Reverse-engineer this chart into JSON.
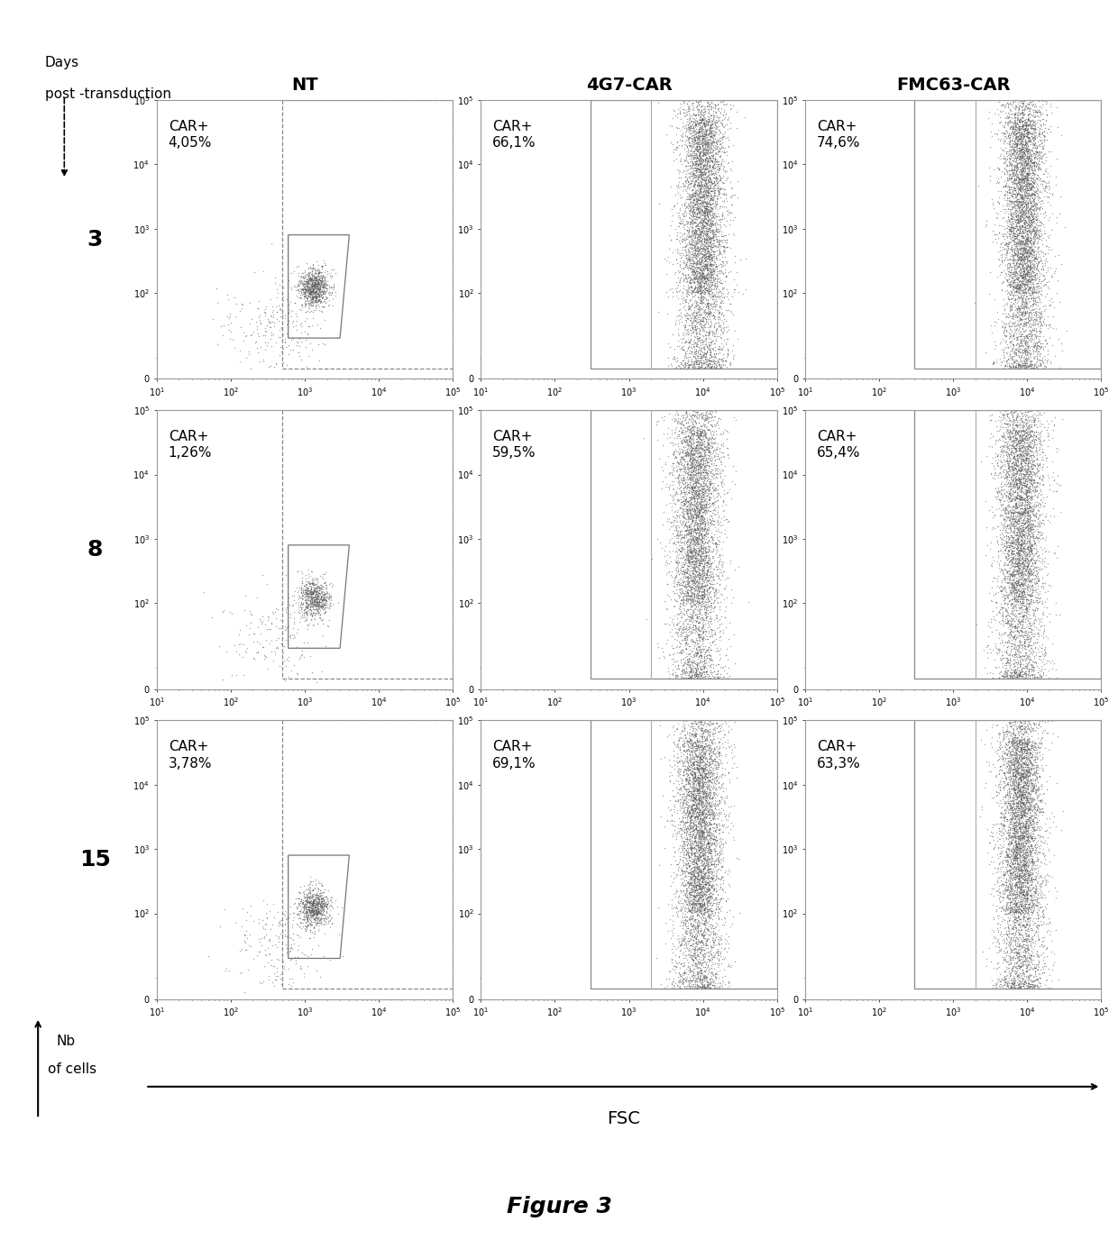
{
  "col_titles": [
    "NT",
    "4G7-CAR",
    "FMC63-CAR"
  ],
  "row_labels": [
    "3",
    "8",
    "15"
  ],
  "car_labels": [
    [
      "CAR+\n4,05%",
      "CAR+\n66,1%",
      "CAR+\n74,6%"
    ],
    [
      "CAR+\n1,26%",
      "CAR+\n59,5%",
      "CAR+\n65,4%"
    ],
    [
      "CAR+\n3,78%",
      "CAR+\n69,1%",
      "CAR+\n63,3%"
    ]
  ],
  "figure_title": "Figure 3",
  "xlabel": "FSC",
  "ylabel_line1": "Nb",
  "ylabel_line2": "of cells",
  "days_label_line1": "Days",
  "days_label_line2": "post -transduction",
  "bg_color": "#ffffff",
  "dot_color": "#555555",
  "axis_label_fontsize": 14,
  "title_fontsize": 18,
  "col_title_fontsize": 14,
  "row_label_fontsize": 18,
  "car_label_fontsize": 11,
  "tick_fontsize": 7
}
